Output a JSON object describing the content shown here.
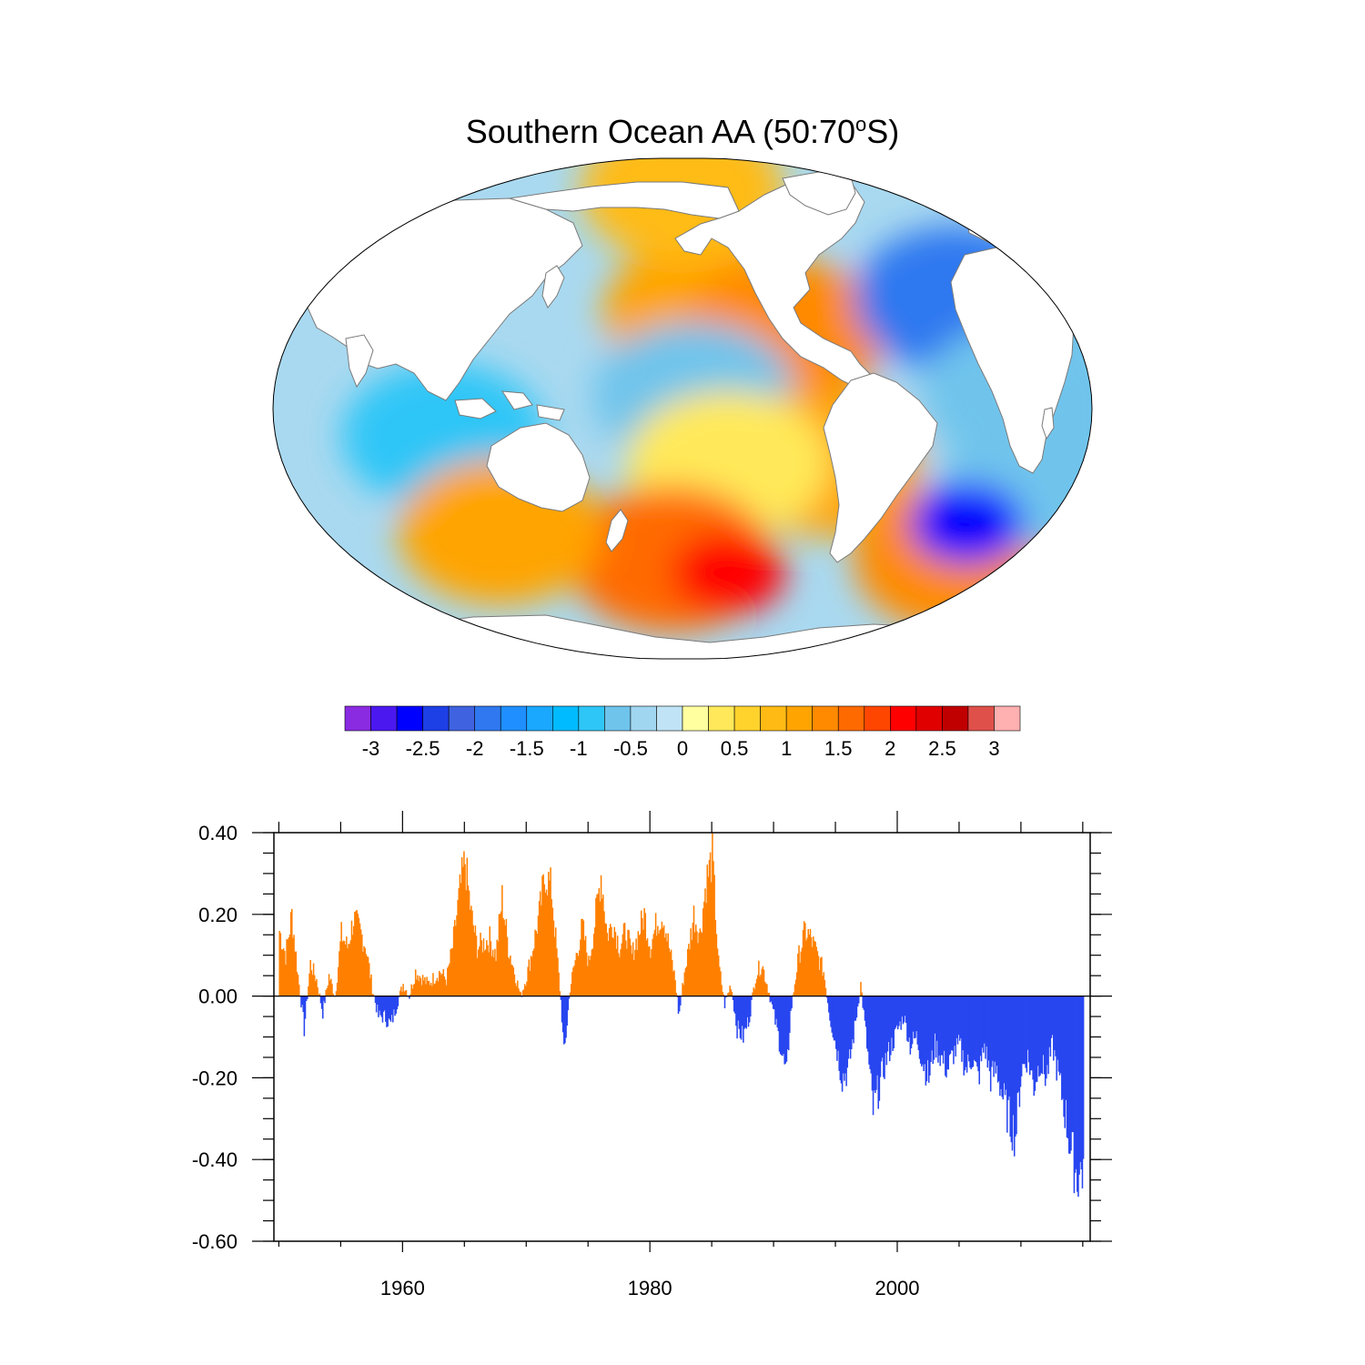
{
  "figure": {
    "title_main": "Southern Ocean AA (50:70",
    "title_degree": "o",
    "title_end": "S)"
  },
  "colorbar": {
    "labels": [
      "-3",
      "-2.5",
      "-2",
      "-1.5",
      "-1",
      "-0.5",
      "0",
      "0.5",
      "1",
      "1.5",
      "2",
      "2.5",
      "3"
    ],
    "colors": [
      "#8a2be2",
      "#4b18f0",
      "#0000ff",
      "#1d3fe6",
      "#3f63e0",
      "#2f78f0",
      "#1f8fff",
      "#1aa8ff",
      "#00bbff",
      "#2ec6f7",
      "#6fc4ec",
      "#a0d6f0",
      "#c0e4f5",
      "#ffffa0",
      "#ffe95a",
      "#ffd22c",
      "#ffbb14",
      "#ffa400",
      "#ff8a00",
      "#ff6a00",
      "#ff4600",
      "#ff0000",
      "#e00000",
      "#c00000",
      "#e0504a",
      "#ffb0b0"
    ]
  },
  "chart_data": [
    {
      "type": "heatmap",
      "description_key": "map",
      "projection": "Winkel tripel",
      "center_longitude": 180,
      "levels": [
        -3,
        -2.75,
        -2.5,
        -2.25,
        -2,
        -1.75,
        -1.5,
        -1.25,
        -1,
        -0.75,
        -0.5,
        -0.25,
        0,
        0.25,
        0.5,
        0.75,
        1,
        1.25,
        1.5,
        1.75,
        2,
        2.25,
        2.5,
        2.75,
        3
      ],
      "regions": [
        {
          "lon": 190,
          "lat": 35,
          "value": 1.2
        },
        {
          "lon": 225,
          "lat": 28,
          "value": 1.4
        },
        {
          "lon": 185,
          "lat": 5,
          "value": -0.7
        },
        {
          "lon": 240,
          "lat": -20,
          "value": 1.2
        },
        {
          "lon": 200,
          "lat": -20,
          "value": 0.4
        },
        {
          "lon": 175,
          "lat": -55,
          "value": 1.6
        },
        {
          "lon": 200,
          "lat": -60,
          "value": 2.1
        },
        {
          "lon": 300,
          "lat": -55,
          "value": 1.5
        },
        {
          "lon": 75,
          "lat": -10,
          "value": -0.9
        },
        {
          "lon": 100,
          "lat": -45,
          "value": 1.1
        },
        {
          "lon": 320,
          "lat": 30,
          "value": -0.6
        },
        {
          "lon": 300,
          "lat": 40,
          "value": -1.8
        },
        {
          "lon": 330,
          "lat": 5,
          "value": -0.7
        },
        {
          "lon": 340,
          "lat": -25,
          "value": -0.5
        },
        {
          "lon": 305,
          "lat": -42,
          "value": -2.5
        },
        {
          "lon": 180,
          "lat": 80,
          "value": 1.0
        }
      ]
    },
    {
      "type": "bar",
      "description_key": "timeseries",
      "x_ticks": [
        1960,
        1980,
        2000
      ],
      "xlim": [
        1949.6,
        2015.6
      ],
      "ylim": [
        -0.6,
        0.4
      ],
      "y_ticks": [
        "0.40",
        "0.20",
        "0.00",
        "-0.20",
        "-0.40",
        "-0.60"
      ],
      "y_tick_values": [
        0.4,
        0.2,
        0.0,
        -0.2,
        -0.4,
        -0.6
      ],
      "positive_color": "#ff8000",
      "negative_color": "#2846f0",
      "anchors": [
        [
          1950.0,
          0.16
        ],
        [
          1950.5,
          0.1
        ],
        [
          1951.0,
          0.2
        ],
        [
          1951.5,
          0.05
        ],
        [
          1952.0,
          -0.08
        ],
        [
          1952.5,
          0.08
        ],
        [
          1953.0,
          0.04
        ],
        [
          1953.5,
          -0.04
        ],
        [
          1954.0,
          0.05
        ],
        [
          1954.5,
          0.0
        ],
        [
          1955.0,
          0.15
        ],
        [
          1955.5,
          0.12
        ],
        [
          1956.0,
          0.19
        ],
        [
          1956.5,
          0.16
        ],
        [
          1957.0,
          0.12
        ],
        [
          1957.5,
          0.02
        ],
        [
          1958.0,
          -0.05
        ],
        [
          1958.5,
          -0.05
        ],
        [
          1959.0,
          -0.07
        ],
        [
          1959.5,
          -0.02
        ],
        [
          1960.0,
          0.03
        ],
        [
          1960.5,
          0.0
        ],
        [
          1961.0,
          0.06
        ],
        [
          1962.0,
          0.03
        ],
        [
          1963.0,
          0.06
        ],
        [
          1963.5,
          0.04
        ],
        [
          1964.0,
          0.12
        ],
        [
          1964.6,
          0.26
        ],
        [
          1965.0,
          0.33
        ],
        [
          1965.5,
          0.2
        ],
        [
          1966.0,
          0.12
        ],
        [
          1967.0,
          0.14
        ],
        [
          1967.5,
          0.1
        ],
        [
          1968.0,
          0.24
        ],
        [
          1968.5,
          0.12
        ],
        [
          1969.0,
          0.06
        ],
        [
          1969.5,
          0.0
        ],
        [
          1970.0,
          0.05
        ],
        [
          1970.5,
          0.12
        ],
        [
          1971.0,
          0.2
        ],
        [
          1971.5,
          0.3
        ],
        [
          1972.0,
          0.26
        ],
        [
          1972.5,
          0.08
        ],
        [
          1972.8,
          -0.03
        ],
        [
          1973.0,
          -0.15
        ],
        [
          1973.5,
          0.02
        ],
        [
          1974.0,
          0.1
        ],
        [
          1974.5,
          0.17
        ],
        [
          1975.0,
          0.08
        ],
        [
          1975.5,
          0.18
        ],
        [
          1976.0,
          0.3
        ],
        [
          1976.5,
          0.15
        ],
        [
          1977.0,
          0.18
        ],
        [
          1977.5,
          0.12
        ],
        [
          1978.0,
          0.16
        ],
        [
          1978.5,
          0.1
        ],
        [
          1979.0,
          0.15
        ],
        [
          1979.5,
          0.2
        ],
        [
          1980.0,
          0.12
        ],
        [
          1980.5,
          0.18
        ],
        [
          1981.0,
          0.2
        ],
        [
          1981.5,
          0.12
        ],
        [
          1982.0,
          0.04
        ],
        [
          1982.3,
          -0.05
        ],
        [
          1982.7,
          0.05
        ],
        [
          1983.0,
          0.1
        ],
        [
          1983.5,
          0.2
        ],
        [
          1984.0,
          0.15
        ],
        [
          1984.5,
          0.28
        ],
        [
          1985.0,
          0.34
        ],
        [
          1985.5,
          0.08
        ],
        [
          1986.0,
          -0.02
        ],
        [
          1986.5,
          0.03
        ],
        [
          1987.0,
          -0.08
        ],
        [
          1987.5,
          -0.1
        ],
        [
          1988.0,
          -0.05
        ],
        [
          1988.5,
          0.05
        ],
        [
          1989.0,
          0.08
        ],
        [
          1989.5,
          0.02
        ],
        [
          1990.0,
          -0.05
        ],
        [
          1990.5,
          -0.12
        ],
        [
          1991.0,
          -0.2
        ],
        [
          1991.3,
          -0.05
        ],
        [
          1991.7,
          0.04
        ],
        [
          1992.0,
          0.1
        ],
        [
          1992.5,
          0.16
        ],
        [
          1993.0,
          0.14
        ],
        [
          1993.5,
          0.1
        ],
        [
          1994.0,
          0.06
        ],
        [
          1994.5,
          -0.05
        ],
        [
          1995.0,
          -0.12
        ],
        [
          1995.5,
          -0.2
        ],
        [
          1996.0,
          -0.18
        ],
        [
          1996.5,
          -0.08
        ],
        [
          1997.0,
          0.03
        ],
        [
          1997.5,
          -0.12
        ],
        [
          1998.0,
          -0.28
        ],
        [
          1998.5,
          -0.22
        ],
        [
          1999.0,
          -0.16
        ],
        [
          1999.5,
          -0.12
        ],
        [
          2000.0,
          -0.08
        ],
        [
          2000.5,
          -0.05
        ],
        [
          2001.0,
          -0.12
        ],
        [
          2001.5,
          -0.1
        ],
        [
          2002.0,
          -0.16
        ],
        [
          2002.5,
          -0.2
        ],
        [
          2003.0,
          -0.12
        ],
        [
          2003.5,
          -0.15
        ],
        [
          2004.0,
          -0.18
        ],
        [
          2004.5,
          -0.14
        ],
        [
          2005.0,
          -0.12
        ],
        [
          2005.5,
          -0.18
        ],
        [
          2006.0,
          -0.15
        ],
        [
          2006.5,
          -0.2
        ],
        [
          2007.0,
          -0.12
        ],
        [
          2007.5,
          -0.2
        ],
        [
          2008.0,
          -0.18
        ],
        [
          2008.5,
          -0.25
        ],
        [
          2009.0,
          -0.3
        ],
        [
          2009.5,
          -0.34
        ],
        [
          2010.0,
          -0.18
        ],
        [
          2010.5,
          -0.15
        ],
        [
          2011.0,
          -0.22
        ],
        [
          2011.5,
          -0.16
        ],
        [
          2012.0,
          -0.2
        ],
        [
          2012.5,
          -0.12
        ],
        [
          2013.0,
          -0.2
        ],
        [
          2013.5,
          -0.28
        ],
        [
          2014.0,
          -0.38
        ],
        [
          2014.5,
          -0.44
        ],
        [
          2015.0,
          -0.42
        ]
      ]
    }
  ]
}
